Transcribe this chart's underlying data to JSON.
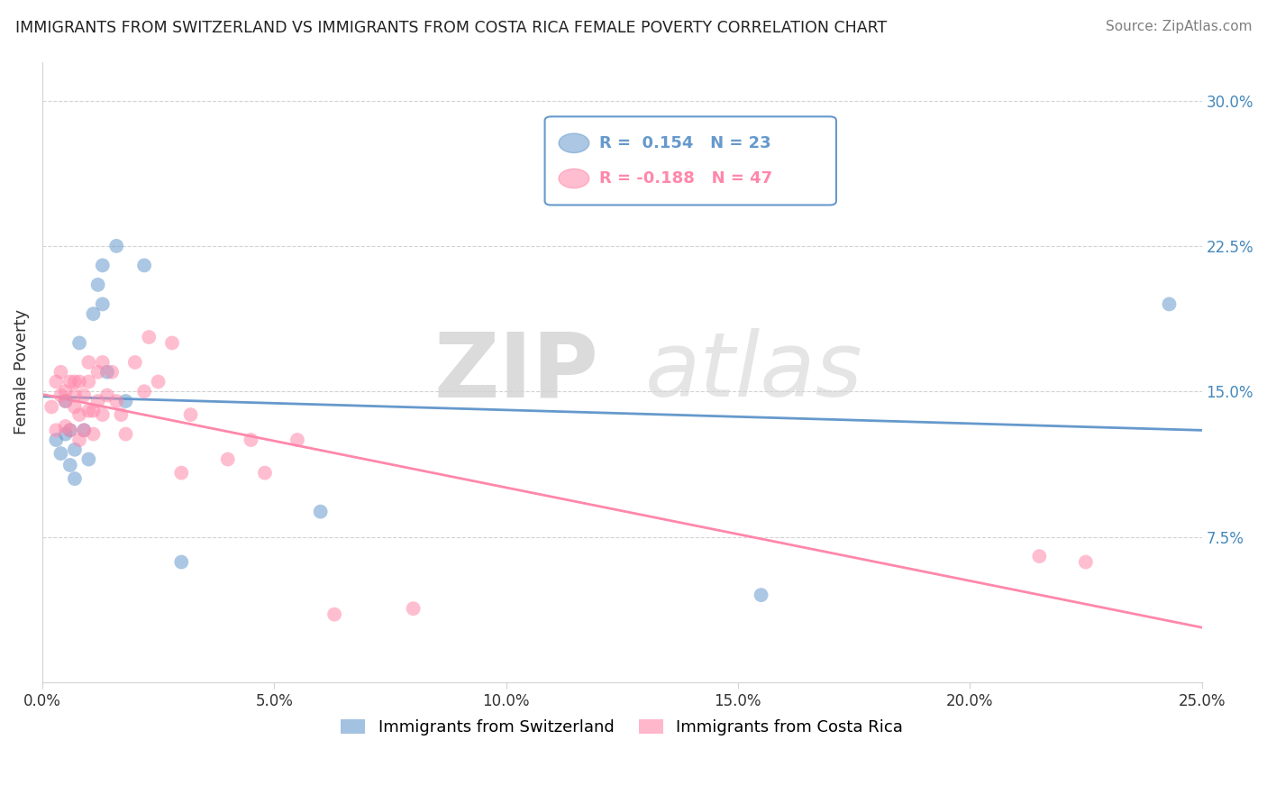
{
  "title": "IMMIGRANTS FROM SWITZERLAND VS IMMIGRANTS FROM COSTA RICA FEMALE POVERTY CORRELATION CHART",
  "source": "Source: ZipAtlas.com",
  "ylabel": "Female Poverty",
  "xlim": [
    0.0,
    0.25
  ],
  "ylim": [
    0.0,
    0.32
  ],
  "xticks": [
    0.0,
    0.05,
    0.1,
    0.15,
    0.2,
    0.25
  ],
  "xtick_labels": [
    "0.0%",
    "5.0%",
    "10.0%",
    "15.0%",
    "20.0%",
    "25.0%"
  ],
  "yticks": [
    0.075,
    0.15,
    0.225,
    0.3
  ],
  "ytick_labels": [
    "7.5%",
    "15.0%",
    "22.5%",
    "30.0%"
  ],
  "blue_color": "#6699CC",
  "pink_color": "#FF88AA",
  "blue_label": "Immigrants from Switzerland",
  "pink_label": "Immigrants from Costa Rica",
  "blue_R": 0.154,
  "blue_N": 23,
  "pink_R": -0.188,
  "pink_N": 47,
  "watermark_zip": "ZIP",
  "watermark_atlas": "atlas",
  "blue_scatter_x": [
    0.003,
    0.004,
    0.005,
    0.005,
    0.006,
    0.006,
    0.007,
    0.007,
    0.008,
    0.009,
    0.01,
    0.011,
    0.012,
    0.013,
    0.013,
    0.014,
    0.016,
    0.018,
    0.022,
    0.03,
    0.06,
    0.155,
    0.243
  ],
  "blue_scatter_y": [
    0.125,
    0.118,
    0.128,
    0.145,
    0.112,
    0.13,
    0.12,
    0.105,
    0.175,
    0.13,
    0.115,
    0.19,
    0.205,
    0.215,
    0.195,
    0.16,
    0.225,
    0.145,
    0.215,
    0.062,
    0.088,
    0.045,
    0.195
  ],
  "pink_scatter_x": [
    0.002,
    0.003,
    0.003,
    0.004,
    0.004,
    0.005,
    0.005,
    0.005,
    0.006,
    0.006,
    0.007,
    0.007,
    0.007,
    0.008,
    0.008,
    0.008,
    0.009,
    0.009,
    0.01,
    0.01,
    0.01,
    0.011,
    0.011,
    0.012,
    0.012,
    0.013,
    0.013,
    0.014,
    0.015,
    0.016,
    0.017,
    0.018,
    0.02,
    0.022,
    0.023,
    0.025,
    0.028,
    0.03,
    0.032,
    0.04,
    0.045,
    0.048,
    0.055,
    0.063,
    0.08,
    0.215,
    0.225
  ],
  "pink_scatter_y": [
    0.142,
    0.155,
    0.13,
    0.16,
    0.148,
    0.15,
    0.132,
    0.145,
    0.155,
    0.13,
    0.142,
    0.155,
    0.148,
    0.138,
    0.125,
    0.155,
    0.148,
    0.13,
    0.14,
    0.155,
    0.165,
    0.14,
    0.128,
    0.145,
    0.16,
    0.138,
    0.165,
    0.148,
    0.16,
    0.145,
    0.138,
    0.128,
    0.165,
    0.15,
    0.178,
    0.155,
    0.175,
    0.108,
    0.138,
    0.115,
    0.125,
    0.108,
    0.125,
    0.035,
    0.038,
    0.065,
    0.062
  ]
}
